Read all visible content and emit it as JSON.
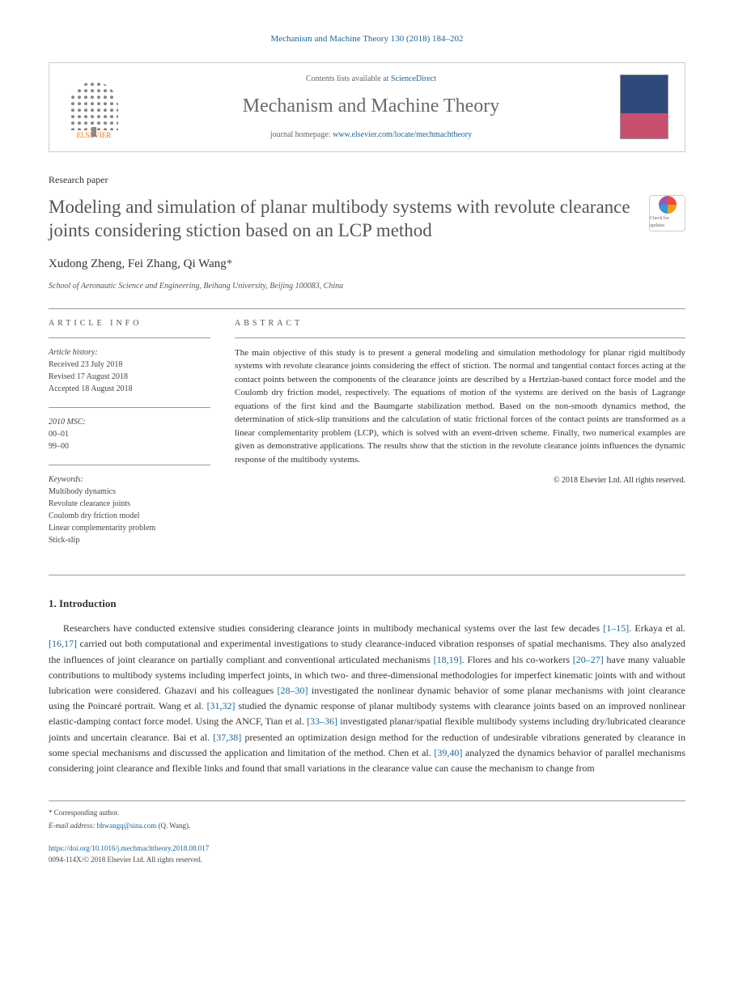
{
  "header": {
    "citation": "Mechanism and Machine Theory 130 (2018) 184–202",
    "contents_prefix": "Contents lists available at ",
    "contents_link": "ScienceDirect",
    "journal_name": "Mechanism and Machine Theory",
    "homepage_prefix": "journal homepage: ",
    "homepage_url": "www.elsevier.com/locate/mechmachtheory",
    "elsevier_label": "ELSEVIER"
  },
  "article": {
    "type": "Research paper",
    "title": "Modeling and simulation of planar multibody systems with revolute clearance joints considering stiction based on an LCP method",
    "authors_plain": "Xudong Zheng, Fei Zhang, Qi Wang",
    "corr_marker": "*",
    "affiliation": "School of Aeronautic Science and Engineering, Beihang University, Beijing 100083, China",
    "check_badge_text": "Check for updates"
  },
  "info": {
    "heading": "ARTICLE INFO",
    "history_label": "Article history:",
    "received": "Received 23 July 2018",
    "revised": "Revised 17 August 2018",
    "accepted": "Accepted 18 August 2018",
    "msc_label": "2010 MSC:",
    "msc1": "00–01",
    "msc2": "99–00",
    "keywords_label": "Keywords:",
    "kw1": "Multibody dynamics",
    "kw2": "Revolute clearance joints",
    "kw3": "Coulomb dry friction model",
    "kw4": "Linear complementarity problem",
    "kw5": "Stick-slip"
  },
  "abstract": {
    "heading": "ABSTRACT",
    "text": "The main objective of this study is to present a general modeling and simulation methodology for planar rigid multibody systems with revolute clearance joints considering the effect of stiction. The normal and tangential contact forces acting at the contact points between the components of the clearance joints are described by a Hertzian-based contact force model and the Coulomb dry friction model, respectively. The equations of motion of the systems are derived on the basis of Lagrange equations of the first kind and the Baumgarte stabilization method. Based on the non-smooth dynamics method, the determination of stick-slip transitions and the calculation of static frictional forces of the contact points are transformed as a linear complementarity problem (LCP), which is solved with an event-driven scheme. Finally, two numerical examples are given as demonstrative applications. The results show that the stiction in the revolute clearance joints influences the dynamic response of the multibody systems.",
    "copyright": "© 2018 Elsevier Ltd. All rights reserved."
  },
  "section1": {
    "heading": "1. Introduction",
    "p1_a": "Researchers have conducted extensive studies considering clearance joints in multibody mechanical systems over the last few decades ",
    "ref1": "[1–15]",
    "p1_b": ". Erkaya et al. ",
    "ref2": "[16,17]",
    "p1_c": " carried out both computational and experimental investigations to study clearance-induced vibration responses of spatial mechanisms. They also analyzed the influences of joint clearance on partially compliant and conventional articulated mechanisms ",
    "ref3": "[18,19]",
    "p1_d": ". Flores and his co-workers ",
    "ref4": "[20–27]",
    "p1_e": " have many valuable contributions to multibody systems including imperfect joints, in which two- and three-dimensional methodologies for imperfect kinematic joints with and without lubrication were considered. Ghazavi and his colleagues ",
    "ref5": "[28–30]",
    "p1_f": " investigated the nonlinear dynamic behavior of some planar mechanisms with joint clearance using the Poincaré portrait. Wang et al. ",
    "ref6": "[31,32]",
    "p1_g": " studied the dynamic response of planar multibody systems with clearance joints based on an improved nonlinear elastic-damping contact force model. Using the ANCF, Tian et al. ",
    "ref7": "[33–36]",
    "p1_h": " investigated planar/spatial flexible multibody systems including dry/lubricated clearance joints and uncertain clearance. Bai et al. ",
    "ref8": "[37,38]",
    "p1_i": " presented an optimization design method for the reduction of undesirable vibrations generated by clearance in some special mechanisms and discussed the application and limitation of the method. Chen et al. ",
    "ref9": "[39,40]",
    "p1_j": " analyzed the dynamics behavior of parallel mechanisms considering joint clearance and flexible links and found that small variations in the clearance value can cause the mechanism to change from"
  },
  "footer": {
    "corr_label": "* Corresponding author.",
    "email_label": "E-mail address: ",
    "email": "bhwangq@sina.com",
    "email_suffix": " (Q. Wang).",
    "doi": "https://doi.org/10.1016/j.mechmachtheory.2018.08.017",
    "issn": "0094-114X/© 2018 Elsevier Ltd. All rights reserved."
  },
  "colors": {
    "link": "#1a6699",
    "elsevier_orange": "#e67817",
    "text": "#333333",
    "heading_gray": "#555555"
  }
}
